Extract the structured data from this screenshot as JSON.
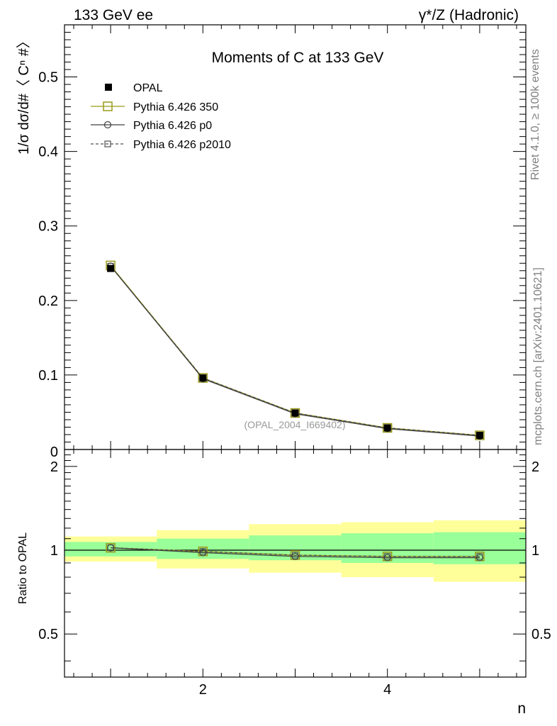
{
  "header": {
    "left": "133 GeV ee",
    "right": "γ*/Z (Hadronic)"
  },
  "side_labels": {
    "rivet": "Rivet 4.1.0, ≥ 100k events",
    "mcplots": "mcplots.cern.ch [arXiv:2401.10621]"
  },
  "chart_data": {
    "type": "scatter",
    "title": "Moments of C at 133 GeV",
    "analysis_id": "(OPAL_2004_I669402)",
    "xlabel": "n",
    "ylabel": "1/σ  dσ/d#〈 Cⁿ #〉",
    "xlim": [
      0.5,
      5.5
    ],
    "ylim": [
      0,
      0.57
    ],
    "x_ticks": [
      2,
      4
    ],
    "y_ticks": [
      0.1,
      0.2,
      0.3,
      0.4,
      0.5
    ],
    "y_tick_labels": [
      "0.1",
      "0.2",
      "0.3",
      "0.4",
      "0.5"
    ],
    "x_tick_labels": [
      "2",
      "4"
    ],
    "y_zero_label": "0",
    "x": [
      1,
      2,
      3,
      4,
      5
    ],
    "series": [
      {
        "name": "OPAL",
        "values": [
          0.243,
          0.096,
          0.049,
          0.029,
          0.019
        ],
        "color": "#000000"
      },
      {
        "name": "Pythia 6.426 350",
        "values": [
          0.247,
          0.096,
          0.049,
          0.029,
          0.019
        ],
        "color": "#9a9a1a"
      },
      {
        "name": "Pythia 6.426 p0",
        "values": [
          0.246,
          0.095,
          0.048,
          0.028,
          0.018
        ],
        "color": "#404040"
      },
      {
        "name": "Pythia 6.426 p2010",
        "values": [
          0.246,
          0.096,
          0.049,
          0.029,
          0.019
        ],
        "color": "#505050"
      }
    ],
    "ratio": {
      "ylabel": "Ratio to OPAL",
      "ylim": [
        0.35,
        2.3
      ],
      "y_ticks": [
        0.5,
        1,
        2
      ],
      "y_tick_labels": [
        "0.5",
        "1",
        "2"
      ],
      "band_inner_low": [
        0.95,
        0.93,
        0.92,
        0.9,
        0.89
      ],
      "band_inner_high": [
        1.07,
        1.1,
        1.13,
        1.15,
        1.16
      ],
      "band_outer_low": [
        0.91,
        0.86,
        0.83,
        0.8,
        0.77
      ],
      "band_outer_high": [
        1.12,
        1.18,
        1.24,
        1.26,
        1.28
      ],
      "series": [
        {
          "name": "Pythia 6.426 350",
          "values": [
            1.02,
            0.99,
            0.96,
            0.95,
            0.95
          ]
        },
        {
          "name": "Pythia 6.426 p0",
          "values": [
            1.02,
            0.98,
            0.95,
            0.94,
            0.94
          ]
        },
        {
          "name": "Pythia 6.426 p2010",
          "values": [
            1.02,
            0.99,
            0.96,
            0.95,
            0.95
          ]
        }
      ]
    }
  }
}
